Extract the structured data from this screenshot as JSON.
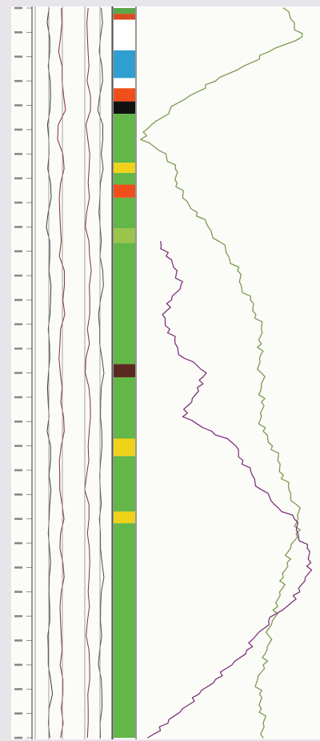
{
  "app": {
    "title": ""
  },
  "chart_data": {
    "type": "line",
    "title": "",
    "xlabel": "",
    "ylabel": "",
    "depth_range": [
      0,
      1000
    ],
    "grid": "off",
    "tracks": [
      {
        "name": "",
        "kind": "depth",
        "tick_count": 31
      },
      {
        "name": "",
        "kind": "curves",
        "series": [
          {
            "name": "",
            "color": "#3b3b3b",
            "depth": [
              0,
              40,
              80,
              120,
              160,
              200,
              240,
              280,
              320,
              360,
              400,
              440,
              480,
              520,
              560,
              600,
              640,
              680,
              720,
              760,
              800,
              840,
              880,
              920,
              960,
              1000
            ],
            "values": [
              0.18,
              0.19,
              0.17,
              0.2,
              0.16,
              0.18,
              0.2,
              0.17,
              0.19,
              0.18,
              0.2,
              0.17,
              0.19,
              0.16,
              0.18,
              0.2,
              0.18,
              0.19,
              0.17,
              0.2,
              0.18,
              0.19,
              0.17,
              0.2,
              0.18,
              0.19
            ]
          },
          {
            "name": "",
            "color": "#8d3e3c",
            "depth": [
              0,
              40,
              80,
              120,
              160,
              200,
              240,
              280,
              320,
              360,
              400,
              440,
              480,
              520,
              560,
              600,
              640,
              680,
              720,
              760,
              800,
              840,
              880,
              920,
              960,
              1000
            ],
            "values": [
              0.34,
              0.33,
              0.35,
              0.37,
              0.3,
              0.36,
              0.33,
              0.32,
              0.34,
              0.38,
              0.36,
              0.33,
              0.31,
              0.35,
              0.37,
              0.34,
              0.32,
              0.35,
              0.33,
              0.36,
              0.34,
              0.33,
              0.35,
              0.36,
              0.34,
              0.33
            ]
          },
          {
            "name": "",
            "color": "#7a3050",
            "depth": [
              0,
              40,
              80,
              120,
              160,
              200,
              240,
              280,
              320,
              360,
              400,
              440,
              480,
              520,
              560,
              600,
              640,
              680,
              720,
              760,
              800,
              840,
              880,
              920,
              960,
              1000
            ],
            "values": [
              0.69,
              0.68,
              0.7,
              0.72,
              0.66,
              0.71,
              0.69,
              0.67,
              0.7,
              0.73,
              0.71,
              0.68,
              0.66,
              0.7,
              0.72,
              0.69,
              0.67,
              0.7,
              0.68,
              0.71,
              0.69,
              0.68,
              0.7,
              0.71,
              0.69,
              0.68
            ]
          },
          {
            "name": "",
            "color": "#4a4a4a",
            "depth": [
              0,
              40,
              80,
              120,
              160,
              200,
              240,
              280,
              320,
              360,
              400,
              440,
              480,
              520,
              560,
              600,
              640,
              680,
              720,
              760,
              800,
              840,
              880,
              920,
              960,
              1000
            ],
            "values": [
              0.86,
              0.85,
              0.87,
              0.84,
              0.88,
              0.86,
              0.85,
              0.83,
              0.86,
              0.88,
              0.85,
              0.84,
              0.87,
              0.86,
              0.85,
              0.87,
              0.84,
              0.86,
              0.85,
              0.87,
              0.86,
              0.85,
              0.84,
              0.86,
              0.87,
              0.85
            ]
          }
        ]
      },
      {
        "name": "",
        "kind": "lithology",
        "intervals": [
          {
            "top": 0,
            "base": 8,
            "color": "#5aa648"
          },
          {
            "top": 8,
            "base": 16,
            "color": "#d84a1f"
          },
          {
            "top": 16,
            "base": 58,
            "color": "#ffffff"
          },
          {
            "top": 58,
            "base": 96,
            "color": "#2f9fcf"
          },
          {
            "top": 96,
            "base": 110,
            "color": "#ffffff"
          },
          {
            "top": 110,
            "base": 128,
            "color": "#f04e1b"
          },
          {
            "top": 128,
            "base": 145,
            "color": "#111111"
          },
          {
            "top": 145,
            "base": 212,
            "color": "#63b648"
          },
          {
            "top": 212,
            "base": 226,
            "color": "#f0d21b"
          },
          {
            "top": 226,
            "base": 242,
            "color": "#63b648"
          },
          {
            "top": 242,
            "base": 260,
            "color": "#f04e1b"
          },
          {
            "top": 260,
            "base": 302,
            "color": "#63b648"
          },
          {
            "top": 302,
            "base": 322,
            "color": "#9ac44a"
          },
          {
            "top": 322,
            "base": 488,
            "color": "#63b648"
          },
          {
            "top": 488,
            "base": 506,
            "color": "#5a2a20"
          },
          {
            "top": 506,
            "base": 590,
            "color": "#63b648"
          },
          {
            "top": 590,
            "base": 614,
            "color": "#f0d21b"
          },
          {
            "top": 614,
            "base": 690,
            "color": "#63b648"
          },
          {
            "top": 690,
            "base": 706,
            "color": "#f0d21b"
          },
          {
            "top": 706,
            "base": 1000,
            "color": "#63b648"
          }
        ]
      },
      {
        "name": "",
        "kind": "curves",
        "series": [
          {
            "name": "",
            "color": "#7a9b50",
            "depth": [
              0,
              20,
              40,
              60,
              80,
              100,
              120,
              140,
              160,
              180,
              200,
              220,
              240,
              260,
              280,
              300,
              320,
              340,
              360,
              380,
              400,
              420,
              440,
              460,
              480,
              500,
              520,
              540,
              560,
              580,
              600,
              620,
              640,
              660,
              680,
              700,
              720,
              740,
              760,
              780,
              800,
              820,
              840,
              860,
              880,
              900,
              920,
              940,
              960,
              980,
              1000
            ],
            "values": [
              0.8,
              0.86,
              0.9,
              0.72,
              0.58,
              0.43,
              0.29,
              0.18,
              0.08,
              0.02,
              0.16,
              0.21,
              0.22,
              0.25,
              0.33,
              0.39,
              0.45,
              0.5,
              0.55,
              0.57,
              0.62,
              0.65,
              0.68,
              0.68,
              0.67,
              0.68,
              0.68,
              0.68,
              0.68,
              0.69,
              0.74,
              0.77,
              0.8,
              0.83,
              0.87,
              0.88,
              0.87,
              0.84,
              0.82,
              0.8,
              0.78,
              0.77,
              0.74,
              0.72,
              0.71,
              0.69,
              0.66,
              0.67,
              0.68,
              0.69,
              0.69
            ]
          },
          {
            "name": "",
            "color": "#7b2d78",
            "depth": [
              320,
              340,
              360,
              380,
              400,
              420,
              440,
              460,
              480,
              500,
              520,
              540,
              560,
              580,
              600,
              620,
              640,
              660,
              680,
              700,
              720,
              740,
              760,
              780,
              800,
              820,
              840,
              860,
              880,
              900,
              920,
              940,
              960,
              980,
              1000
            ],
            "values": [
              0.13,
              0.16,
              0.22,
              0.24,
              0.19,
              0.14,
              0.18,
              0.21,
              0.26,
              0.38,
              0.33,
              0.3,
              0.25,
              0.41,
              0.54,
              0.58,
              0.63,
              0.68,
              0.75,
              0.86,
              0.88,
              0.93,
              0.95,
              0.92,
              0.89,
              0.82,
              0.72,
              0.65,
              0.6,
              0.52,
              0.43,
              0.34,
              0.25,
              0.17,
              0.06
            ]
          }
        ]
      }
    ]
  }
}
